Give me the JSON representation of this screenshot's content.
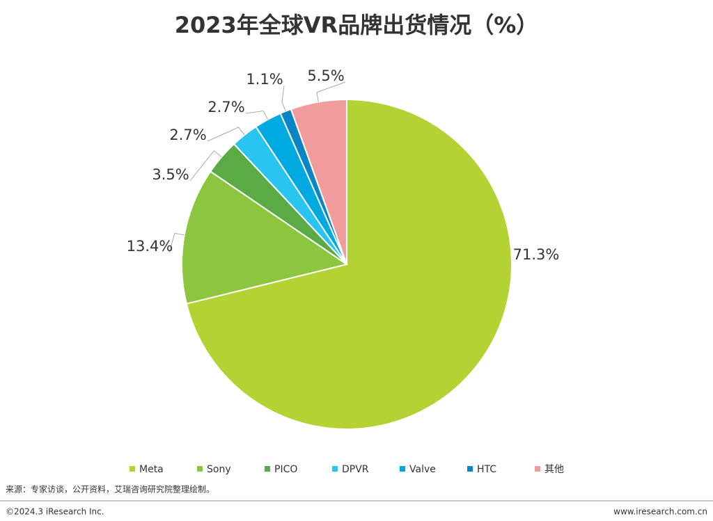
{
  "chart_data": {
    "type": "pie",
    "title": "2023年全球VR品牌出货情况（%）",
    "categories": [
      "Meta",
      "Sony",
      "PICO",
      "DPVR",
      "Valve",
      "HTC",
      "其他"
    ],
    "values": [
      71.3,
      13.4,
      3.5,
      2.7,
      2.7,
      1.1,
      5.5
    ],
    "value_labels": [
      "71.3%",
      "13.4%",
      "3.5%",
      "2.7%",
      "2.7%",
      "1.1%",
      "5.5%"
    ],
    "colors": [
      "#b3d334",
      "#8cc63f",
      "#5aab45",
      "#29c5f0",
      "#00a9e0",
      "#0a86c5",
      "#f19c9c"
    ],
    "legend": "bottom"
  },
  "source": "来源：专家访谈，公开资料，艾瑞咨询研究院整理绘制。",
  "footer": {
    "copyright": "©2024.3 iResearch Inc.",
    "website": "www.iresearch.com.cn"
  }
}
